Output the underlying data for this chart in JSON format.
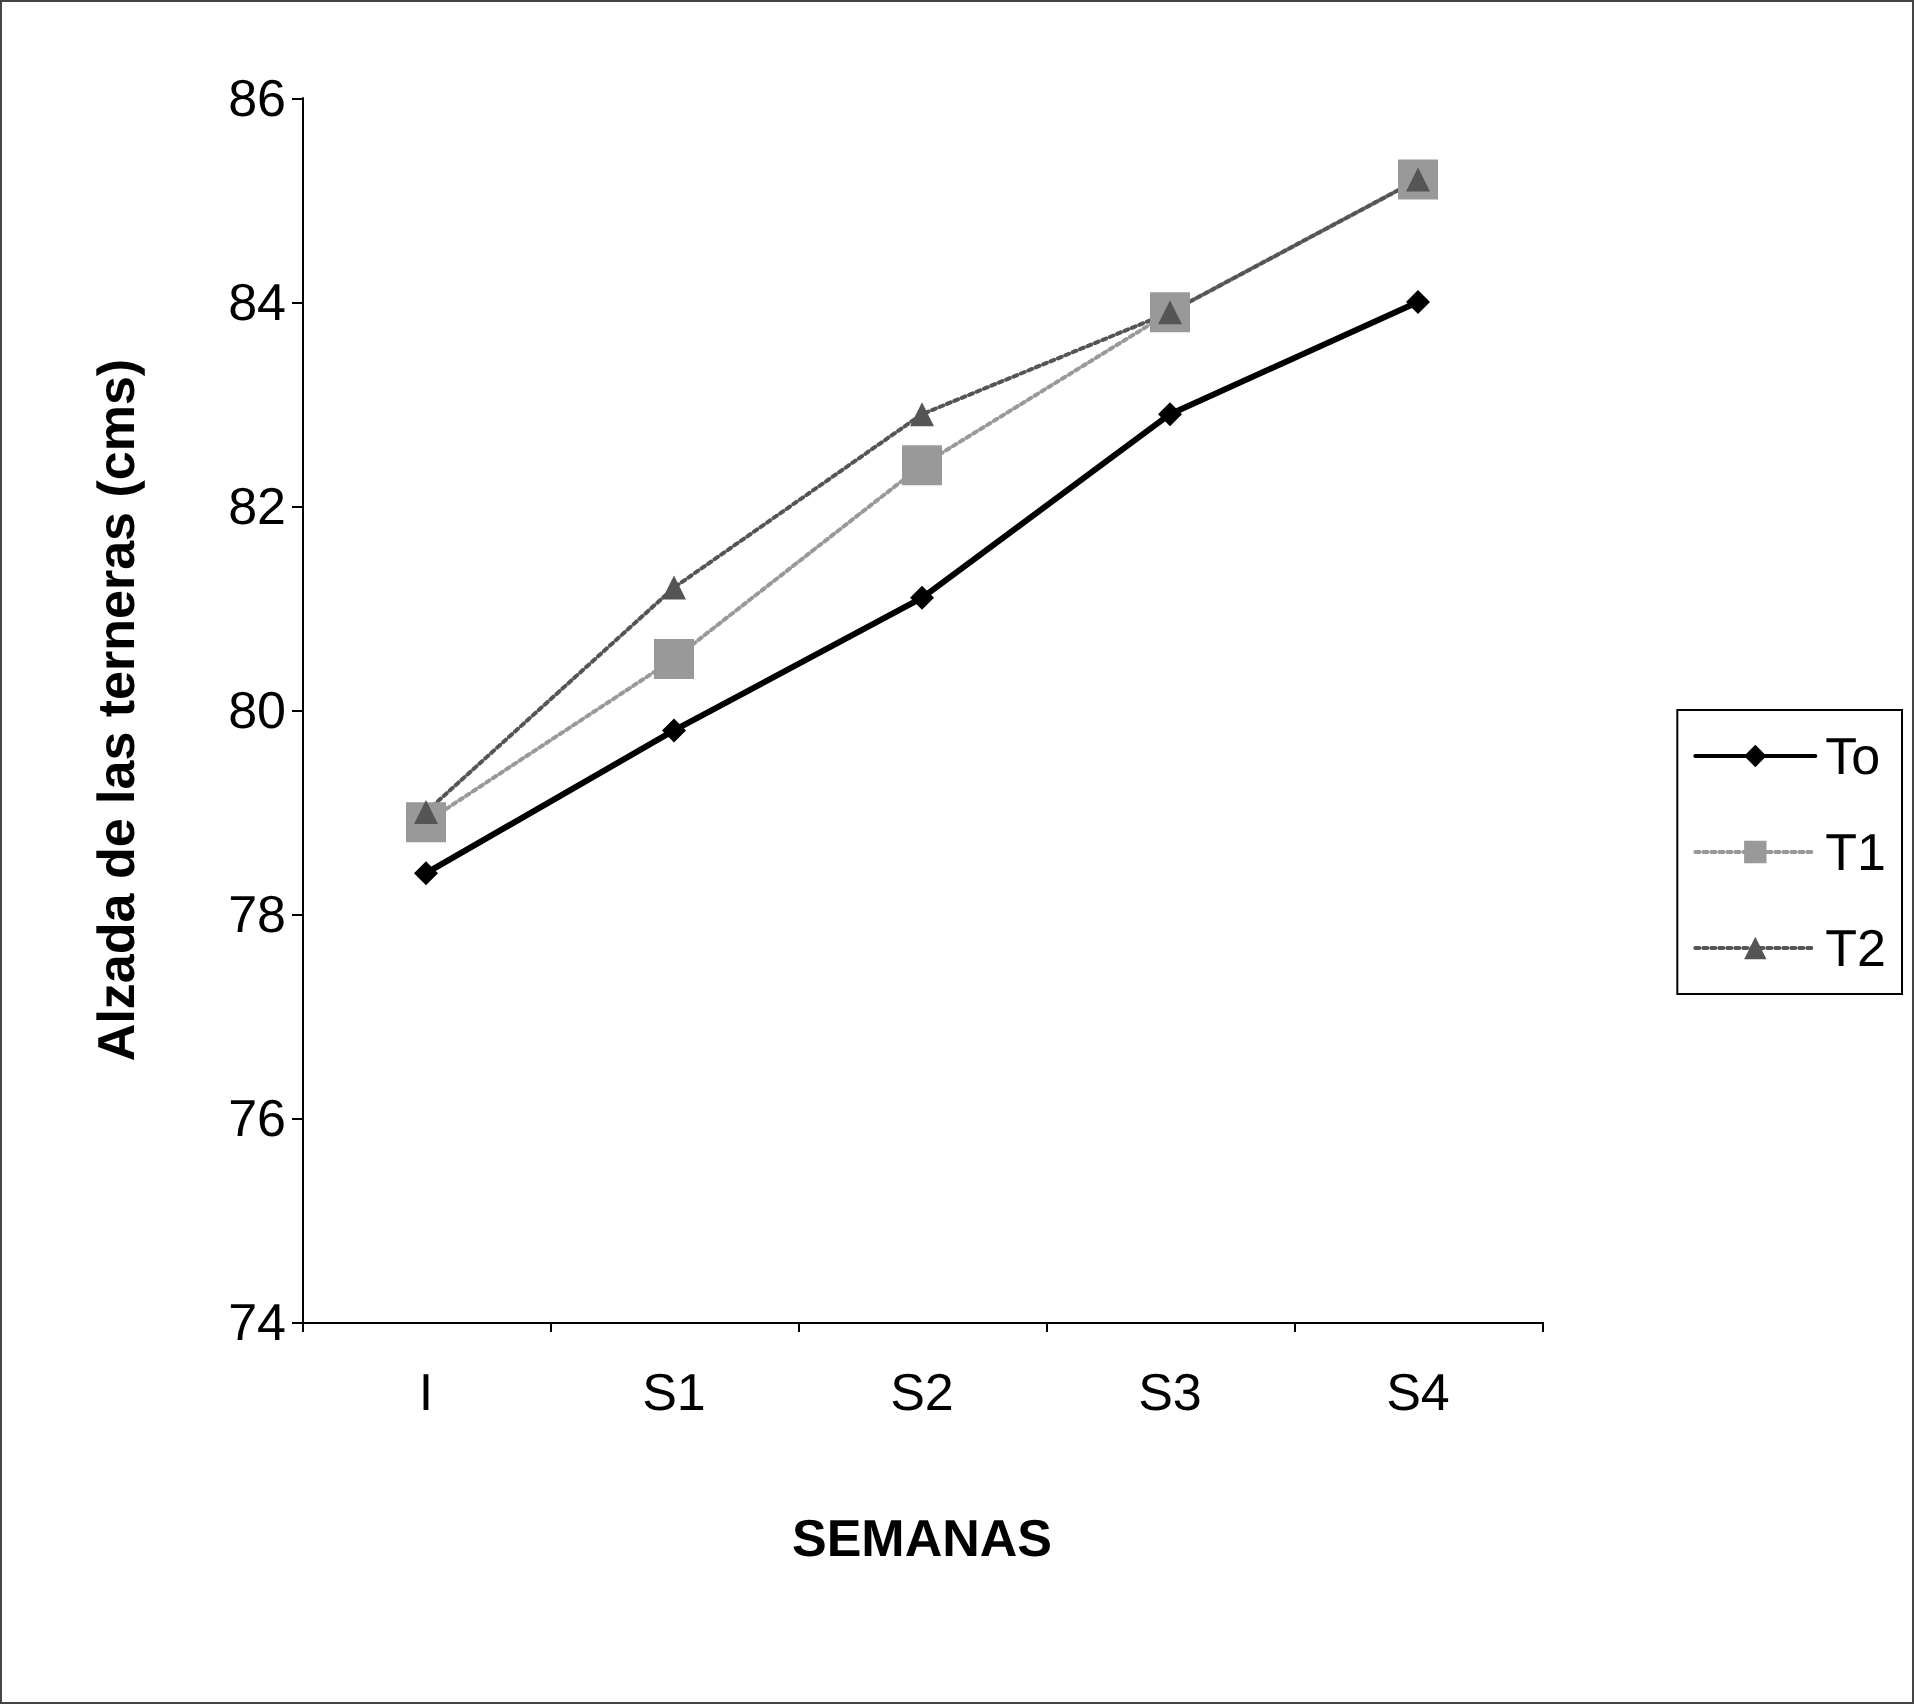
{
  "chart_data": {
    "type": "line",
    "xlabel": "SEMANAS",
    "ylabel": "Alzada de las terneras (cms)",
    "categories": [
      "I",
      "S1",
      "S2",
      "S3",
      "S4"
    ],
    "series": [
      {
        "name": "To",
        "color": "#000000",
        "values": [
          78.4,
          79.8,
          81.1,
          82.9,
          84.0
        ],
        "marker": "diamond",
        "line_style": "solid"
      },
      {
        "name": "T1",
        "color": "#999999",
        "values": [
          78.9,
          80.5,
          82.4,
          83.9,
          85.2
        ],
        "marker": "square",
        "line_style": "dotted"
      },
      {
        "name": "T2",
        "color": "#555555",
        "values": [
          79.0,
          81.2,
          82.9,
          83.9,
          85.2
        ],
        "marker": "triangle",
        "line_style": "dotted"
      }
    ],
    "ylim": [
      74,
      86
    ],
    "yticks": [
      74,
      76,
      78,
      80,
      82,
      84,
      86
    ],
    "grid": false,
    "legend": "right"
  }
}
